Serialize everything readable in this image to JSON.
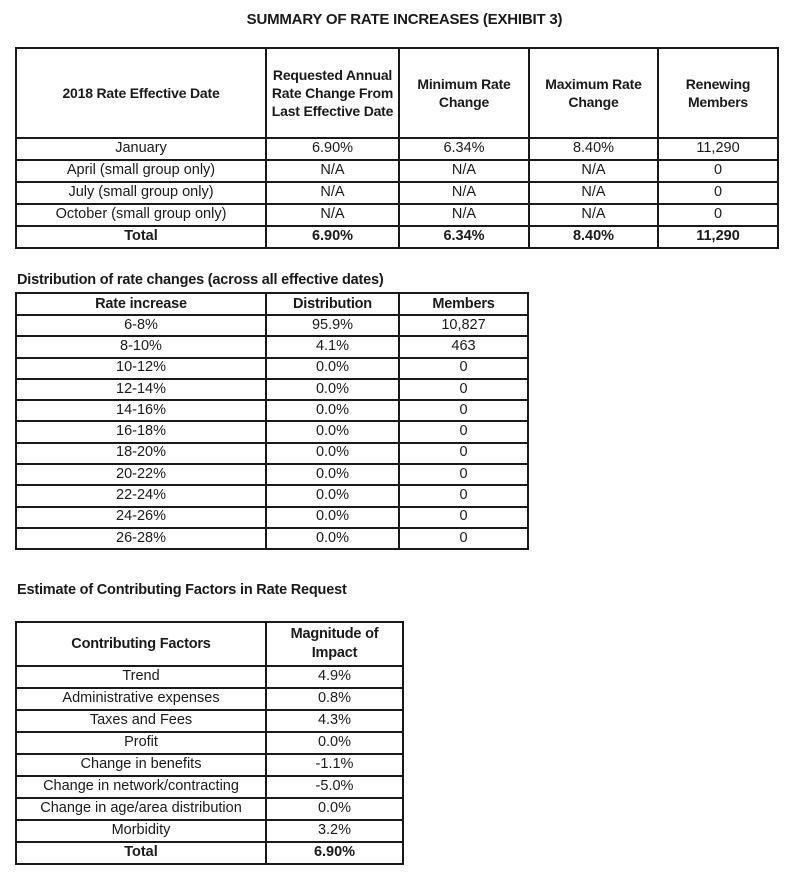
{
  "colors": {
    "ink": "#1a1a1a",
    "background": "#ffffff"
  },
  "title": "SUMMARY OF RATE INCREASES (EXHIBIT 3)",
  "rate_summary": {
    "table": {
      "columns": [
        "2018 Rate Effective Date",
        "Requested Annual Rate Change From Last Effective Date",
        "Minimum Rate Change",
        "Maximum Rate Change",
        "Renewing Members"
      ],
      "rows": [
        {
          "cells": [
            "January",
            "6.90%",
            "6.34%",
            "8.40%",
            "11,290"
          ],
          "bold": false
        },
        {
          "cells": [
            "April (small group only)",
            "N/A",
            "N/A",
            "N/A",
            "0"
          ],
          "bold": false
        },
        {
          "cells": [
            "July (small group only)",
            "N/A",
            "N/A",
            "N/A",
            "0"
          ],
          "bold": false
        },
        {
          "cells": [
            "October (small group only)",
            "N/A",
            "N/A",
            "N/A",
            "0"
          ],
          "bold": false
        },
        {
          "cells": [
            "Total",
            "6.90%",
            "6.34%",
            "8.40%",
            "11,290"
          ],
          "bold": true
        }
      ]
    }
  },
  "distribution_section": {
    "heading": "Distribution of rate changes (across all effective dates)",
    "table": {
      "columns": [
        "Rate increase",
        "Distribution",
        "Members"
      ],
      "rows": [
        {
          "cells": [
            "6-8%",
            "95.9%",
            "10,827"
          ],
          "bold": false
        },
        {
          "cells": [
            "8-10%",
            "4.1%",
            "463"
          ],
          "bold": false
        },
        {
          "cells": [
            "10-12%",
            "0.0%",
            "0"
          ],
          "bold": false
        },
        {
          "cells": [
            "12-14%",
            "0.0%",
            "0"
          ],
          "bold": false
        },
        {
          "cells": [
            "14-16%",
            "0.0%",
            "0"
          ],
          "bold": false
        },
        {
          "cells": [
            "16-18%",
            "0.0%",
            "0"
          ],
          "bold": false
        },
        {
          "cells": [
            "18-20%",
            "0.0%",
            "0"
          ],
          "bold": false
        },
        {
          "cells": [
            "20-22%",
            "0.0%",
            "0"
          ],
          "bold": false
        },
        {
          "cells": [
            "22-24%",
            "0.0%",
            "0"
          ],
          "bold": false
        },
        {
          "cells": [
            "24-26%",
            "0.0%",
            "0"
          ],
          "bold": false
        },
        {
          "cells": [
            "26-28%",
            "0.0%",
            "0"
          ],
          "bold": false
        }
      ]
    }
  },
  "factors_section": {
    "heading": "Estimate of Contributing Factors in Rate Request",
    "table": {
      "columns": [
        "Contributing Factors",
        "Magnitude of Impact"
      ],
      "rows": [
        {
          "cells": [
            "Trend",
            "4.9%"
          ],
          "bold": false
        },
        {
          "cells": [
            "Administrative expenses",
            "0.8%"
          ],
          "bold": false
        },
        {
          "cells": [
            "Taxes and Fees",
            "4.3%"
          ],
          "bold": false
        },
        {
          "cells": [
            "Profit",
            "0.0%"
          ],
          "bold": false
        },
        {
          "cells": [
            "Change in benefits",
            "-1.1%"
          ],
          "bold": false
        },
        {
          "cells": [
            "Change in network/contracting",
            "-5.0%"
          ],
          "bold": false
        },
        {
          "cells": [
            "Change in age/area distribution",
            "0.0%"
          ],
          "bold": false
        },
        {
          "cells": [
            "Morbidity",
            "3.2%"
          ],
          "bold": false
        },
        {
          "cells": [
            "Total",
            "6.90%"
          ],
          "bold": true
        }
      ]
    }
  }
}
